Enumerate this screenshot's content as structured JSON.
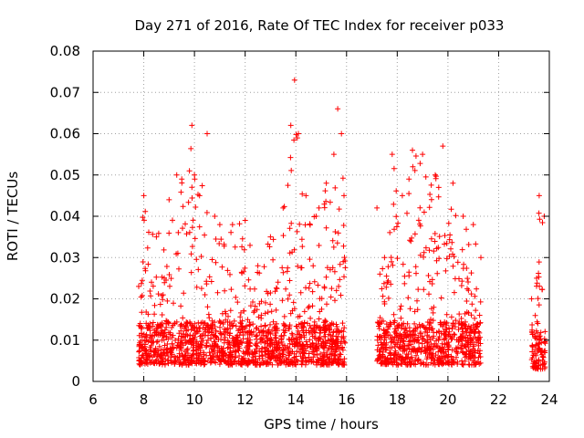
{
  "chart_data": {
    "type": "scatter",
    "title": "Day 271 of 2016, Rate Of TEC Index for receiver p033",
    "xlabel": "GPS time / hours",
    "ylabel": "ROTI / TECUs",
    "xlim": [
      6,
      24
    ],
    "ylim": [
      0,
      0.08
    ],
    "xticks": [
      6,
      8,
      10,
      12,
      14,
      16,
      18,
      20,
      22,
      24
    ],
    "yticks": [
      0,
      0.01,
      0.02,
      0.03,
      0.04,
      0.05,
      0.06,
      0.07,
      0.08
    ],
    "xtick_labels": [
      "6",
      "8",
      "10",
      "12",
      "14",
      "16",
      "18",
      "20",
      "22",
      "24"
    ],
    "ytick_labels": [
      "0",
      "0.01",
      "0.02",
      "0.03",
      "0.04",
      "0.05",
      "0.06",
      "0.07",
      "0.08"
    ],
    "grid": true,
    "marker": "+",
    "color": "#ff0000",
    "series": [
      {
        "name": "ROTI",
        "coverage_segments": [
          {
            "x_start": 7.8,
            "x_end": 15.95,
            "typical_min": 0.004,
            "typical_median": 0.012
          },
          {
            "x_start": 17.2,
            "x_end": 21.3,
            "typical_min": 0.004,
            "typical_median": 0.012
          },
          {
            "x_start": 23.3,
            "x_end": 23.85,
            "typical_min": 0.003,
            "typical_median": 0.01
          }
        ],
        "upper_envelope": [
          [
            7.8,
            0.023
          ],
          [
            8.0,
            0.045
          ],
          [
            8.5,
            0.035
          ],
          [
            9.0,
            0.044
          ],
          [
            9.3,
            0.05
          ],
          [
            9.5,
            0.049
          ],
          [
            9.8,
            0.051
          ],
          [
            9.9,
            0.062
          ],
          [
            10.0,
            0.05
          ],
          [
            10.2,
            0.045
          ],
          [
            10.5,
            0.06
          ],
          [
            10.8,
            0.04
          ],
          [
            11.0,
            0.038
          ],
          [
            11.5,
            0.038
          ],
          [
            12.0,
            0.039
          ],
          [
            12.5,
            0.028
          ],
          [
            13.0,
            0.035
          ],
          [
            13.5,
            0.042
          ],
          [
            13.8,
            0.062
          ],
          [
            13.95,
            0.073
          ],
          [
            14.1,
            0.06
          ],
          [
            14.4,
            0.045
          ],
          [
            14.8,
            0.04
          ],
          [
            15.2,
            0.048
          ],
          [
            15.5,
            0.055
          ],
          [
            15.65,
            0.066
          ],
          [
            15.8,
            0.06
          ],
          [
            15.9,
            0.045
          ],
          [
            17.2,
            0.042
          ],
          [
            17.5,
            0.03
          ],
          [
            17.8,
            0.055
          ],
          [
            18.2,
            0.045
          ],
          [
            18.6,
            0.056
          ],
          [
            19.0,
            0.055
          ],
          [
            19.5,
            0.05
          ],
          [
            19.8,
            0.057
          ],
          [
            20.2,
            0.048
          ],
          [
            20.6,
            0.04
          ],
          [
            21.0,
            0.038
          ],
          [
            21.3,
            0.03
          ],
          [
            23.3,
            0.02
          ],
          [
            23.5,
            0.025
          ],
          [
            23.6,
            0.045
          ],
          [
            23.8,
            0.04
          ]
        ]
      }
    ]
  }
}
